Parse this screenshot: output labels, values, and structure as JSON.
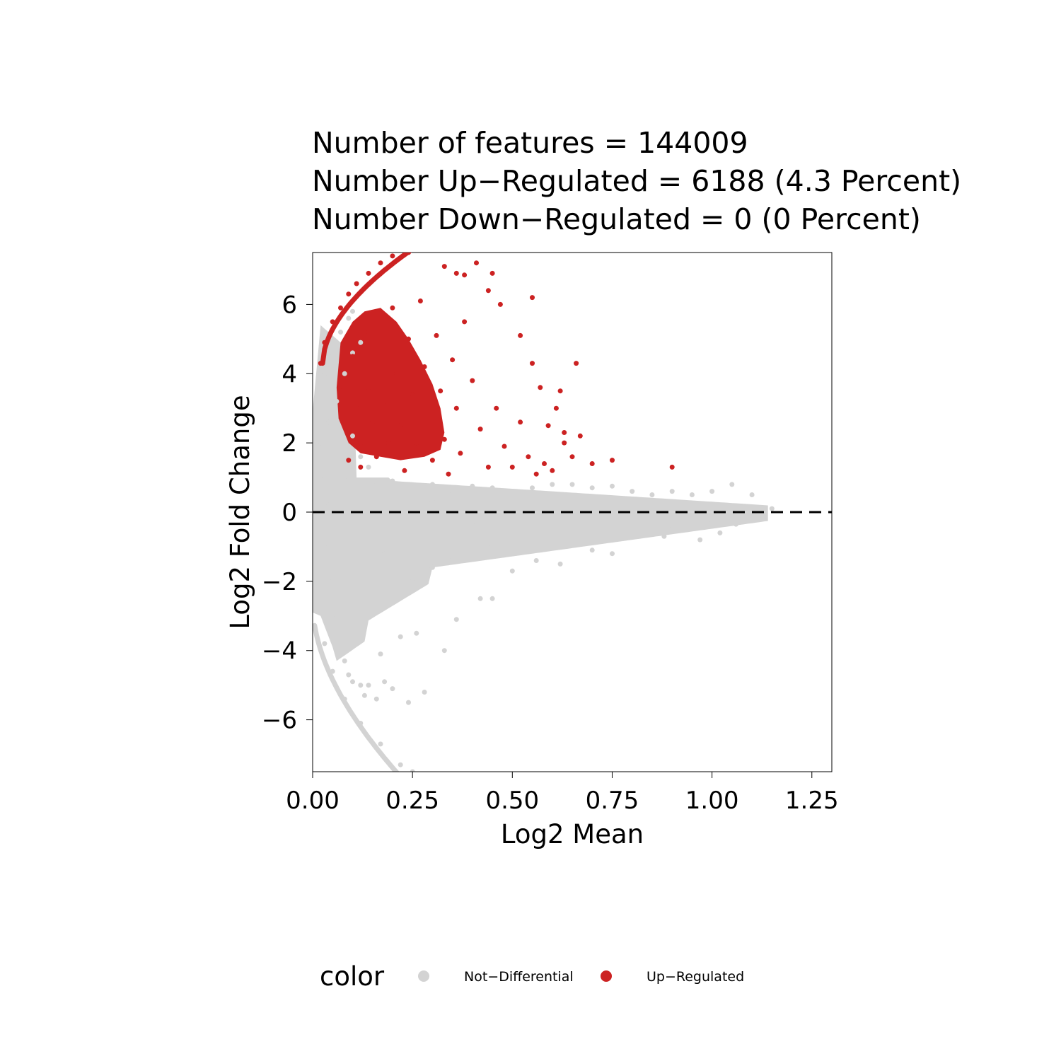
{
  "chart_data": {
    "type": "scatter",
    "title_lines": [
      "Number of features = 144009",
      "Number Up−Regulated = 6188 (4.3 Percent)",
      "Number Down−Regulated = 0 (0 Percent)"
    ],
    "xlabel": "Log2 Mean",
    "ylabel": "Log2 Fold Change",
    "xlim": [
      0,
      1.3
    ],
    "ylim": [
      -7.5,
      7.5
    ],
    "x_ticks": [
      0,
      0.25,
      0.5,
      0.75,
      1.0,
      1.25
    ],
    "x_tick_labels": [
      "0.00",
      "0.25",
      "0.50",
      "0.75",
      "1.00",
      "1.25"
    ],
    "y_ticks": [
      -6,
      -4,
      -2,
      0,
      2,
      4,
      6
    ],
    "y_tick_labels": [
      "−6",
      "−4",
      "−2",
      "0",
      "2",
      "4",
      "6"
    ],
    "reference_line": {
      "y": 0,
      "style": "dashed",
      "color": "#000000"
    },
    "legend": {
      "title": "color",
      "position": "bottom",
      "items": [
        {
          "label": "Not−Differential",
          "color": "#d3d3d3"
        },
        {
          "label": "Up−Regulated",
          "color": "#cc2222"
        }
      ]
    },
    "series": [
      {
        "name": "Not−Differential",
        "color": "#d3d3d3",
        "points": [
          [
            0.01,
            2.9
          ],
          [
            0.02,
            3.6
          ],
          [
            0.03,
            4.0
          ],
          [
            0.05,
            4.5
          ],
          [
            0.07,
            5.2
          ],
          [
            0.09,
            5.6
          ],
          [
            0.1,
            5.8
          ],
          [
            0.02,
            -2.9
          ],
          [
            0.03,
            -3.8
          ],
          [
            0.05,
            -4.6
          ],
          [
            0.08,
            -5.4
          ],
          [
            0.12,
            -6.1
          ],
          [
            0.17,
            -6.7
          ],
          [
            0.22,
            -7.3
          ],
          [
            0.25,
            -7.5
          ],
          [
            0.02,
            2.0
          ],
          [
            0.03,
            1.0
          ],
          [
            0.04,
            0.2
          ],
          [
            0.04,
            -1.0
          ],
          [
            0.05,
            -2.0
          ],
          [
            0.06,
            -3.0
          ],
          [
            0.07,
            -3.6
          ],
          [
            0.08,
            -4.3
          ],
          [
            0.09,
            -4.7
          ],
          [
            0.1,
            -4.9
          ],
          [
            0.12,
            -5.0
          ],
          [
            0.13,
            -5.3
          ],
          [
            0.14,
            -5.0
          ],
          [
            0.16,
            -5.4
          ],
          [
            0.18,
            -4.9
          ],
          [
            0.2,
            -5.1
          ],
          [
            0.24,
            -5.5
          ],
          [
            0.28,
            -5.2
          ],
          [
            0.04,
            2.6
          ],
          [
            0.06,
            3.2
          ],
          [
            0.08,
            4.0
          ],
          [
            0.1,
            4.6
          ],
          [
            0.12,
            4.9
          ],
          [
            0.06,
            1.5
          ],
          [
            0.09,
            1.0
          ],
          [
            0.12,
            0.9
          ],
          [
            0.15,
            0.8
          ],
          [
            0.2,
            0.9
          ],
          [
            0.25,
            0.7
          ],
          [
            0.3,
            0.8
          ],
          [
            0.35,
            0.6
          ],
          [
            0.4,
            0.75
          ],
          [
            0.45,
            0.7
          ],
          [
            0.5,
            0.6
          ],
          [
            0.55,
            0.7
          ],
          [
            0.6,
            0.8
          ],
          [
            0.65,
            0.8
          ],
          [
            0.7,
            0.7
          ],
          [
            0.75,
            0.75
          ],
          [
            0.8,
            0.6
          ],
          [
            0.85,
            0.5
          ],
          [
            0.9,
            0.6
          ],
          [
            0.95,
            0.5
          ],
          [
            1.0,
            0.6
          ],
          [
            1.05,
            0.8
          ],
          [
            1.1,
            0.5
          ],
          [
            1.15,
            0.1
          ],
          [
            0.15,
            -2.5
          ],
          [
            0.2,
            -2.4
          ],
          [
            0.25,
            -2.0
          ],
          [
            0.3,
            -1.6
          ],
          [
            0.35,
            -1.3
          ],
          [
            0.4,
            -1.2
          ],
          [
            0.45,
            -1.0
          ],
          [
            0.5,
            -0.9
          ],
          [
            0.55,
            -0.8
          ],
          [
            0.6,
            -0.8
          ],
          [
            0.65,
            -0.7
          ],
          [
            0.7,
            -0.7
          ],
          [
            0.75,
            -0.6
          ],
          [
            0.8,
            -0.5
          ],
          [
            0.85,
            -0.5
          ],
          [
            0.9,
            -0.4
          ],
          [
            0.95,
            -0.4
          ],
          [
            1.0,
            -0.3
          ],
          [
            1.05,
            -0.2
          ],
          [
            0.17,
            -4.1
          ],
          [
            0.22,
            -3.6
          ],
          [
            0.26,
            -3.5
          ],
          [
            0.33,
            -4.0
          ],
          [
            0.36,
            -3.1
          ],
          [
            0.42,
            -2.5
          ],
          [
            0.45,
            -2.5
          ],
          [
            0.5,
            -1.7
          ],
          [
            0.56,
            -1.4
          ],
          [
            0.62,
            -1.5
          ],
          [
            0.7,
            -1.1
          ],
          [
            0.75,
            -1.2
          ],
          [
            0.88,
            -0.7
          ],
          [
            0.97,
            -0.8
          ],
          [
            1.02,
            -0.6
          ],
          [
            1.06,
            -0.35
          ],
          [
            1.12,
            -0.1
          ],
          [
            0.1,
            2.2
          ],
          [
            0.12,
            1.6
          ],
          [
            0.14,
            1.3
          ],
          [
            0.18,
            -1.2
          ],
          [
            0.22,
            -0.9
          ],
          [
            0.3,
            0.3
          ],
          [
            0.4,
            -0.3
          ],
          [
            0.5,
            0.2
          ],
          [
            0.6,
            -0.2
          ],
          [
            0.7,
            0.3
          ],
          [
            0.8,
            -0.1
          ],
          [
            0.9,
            0.15
          ],
          [
            1.0,
            -0.1
          ]
        ]
      },
      {
        "name": "Up−Regulated",
        "color": "#cc2222",
        "points": [
          [
            0.02,
            4.3
          ],
          [
            0.03,
            4.9
          ],
          [
            0.05,
            5.5
          ],
          [
            0.07,
            5.9
          ],
          [
            0.09,
            6.3
          ],
          [
            0.11,
            6.6
          ],
          [
            0.14,
            6.9
          ],
          [
            0.17,
            7.2
          ],
          [
            0.2,
            7.4
          ],
          [
            0.24,
            7.5
          ],
          [
            0.07,
            3.5
          ],
          [
            0.08,
            2.6
          ],
          [
            0.09,
            1.5
          ],
          [
            0.1,
            4.5
          ],
          [
            0.11,
            3.0
          ],
          [
            0.12,
            2.0
          ],
          [
            0.12,
            1.3
          ],
          [
            0.13,
            5.2
          ],
          [
            0.14,
            3.6
          ],
          [
            0.15,
            2.6
          ],
          [
            0.16,
            1.6
          ],
          [
            0.17,
            4.7
          ],
          [
            0.18,
            3.2
          ],
          [
            0.19,
            2.0
          ],
          [
            0.2,
            5.9
          ],
          [
            0.21,
            4.0
          ],
          [
            0.22,
            2.5
          ],
          [
            0.23,
            1.2
          ],
          [
            0.24,
            5.0
          ],
          [
            0.25,
            3.4
          ],
          [
            0.26,
            2.0
          ],
          [
            0.27,
            6.1
          ],
          [
            0.28,
            4.2
          ],
          [
            0.29,
            2.8
          ],
          [
            0.3,
            1.5
          ],
          [
            0.31,
            5.1
          ],
          [
            0.32,
            3.5
          ],
          [
            0.33,
            2.1
          ],
          [
            0.34,
            1.1
          ],
          [
            0.35,
            4.4
          ],
          [
            0.36,
            3.0
          ],
          [
            0.37,
            1.7
          ],
          [
            0.38,
            5.5
          ],
          [
            0.4,
            3.8
          ],
          [
            0.42,
            2.4
          ],
          [
            0.44,
            1.3
          ],
          [
            0.46,
            3.0
          ],
          [
            0.48,
            1.9
          ],
          [
            0.5,
            1.3
          ],
          [
            0.52,
            2.6
          ],
          [
            0.54,
            1.6
          ],
          [
            0.56,
            1.1
          ],
          [
            0.58,
            1.4
          ],
          [
            0.6,
            1.2
          ],
          [
            0.62,
            3.5
          ],
          [
            0.63,
            2.3
          ],
          [
            0.66,
            4.3
          ],
          [
            0.67,
            2.2
          ],
          [
            0.7,
            1.4
          ],
          [
            0.75,
            1.5
          ],
          [
            0.9,
            1.3
          ],
          [
            0.33,
            7.1
          ],
          [
            0.36,
            6.9
          ],
          [
            0.38,
            6.85
          ],
          [
            0.41,
            7.2
          ],
          [
            0.45,
            6.9
          ],
          [
            0.44,
            6.4
          ],
          [
            0.55,
            6.2
          ],
          [
            0.47,
            6.0
          ],
          [
            0.52,
            5.1
          ],
          [
            0.55,
            4.3
          ],
          [
            0.61,
            3.0
          ],
          [
            0.57,
            3.6
          ],
          [
            0.59,
            2.5
          ],
          [
            0.63,
            2.0
          ],
          [
            0.65,
            1.6
          ]
        ]
      }
    ]
  }
}
